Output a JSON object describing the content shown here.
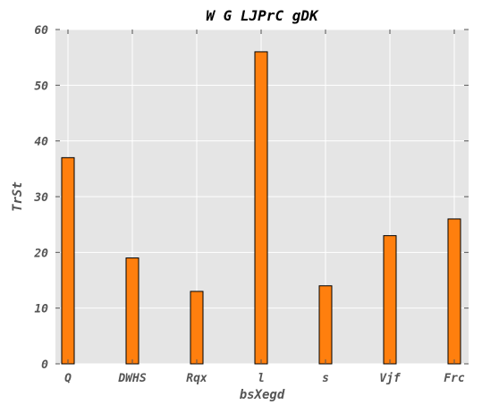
{
  "chart_data": {
    "type": "bar",
    "title": "W G LJPrC gDK",
    "xlabel": "bsXegd",
    "ylabel": "TrSt",
    "categories": [
      "Q",
      "DWHS",
      "Rqx",
      "l",
      "s",
      "Vjf",
      "Frc"
    ],
    "values": [
      37,
      19,
      13,
      56,
      14,
      23,
      26
    ],
    "ylim": [
      0,
      60
    ],
    "yticks": [
      0,
      10,
      20,
      30,
      40,
      50,
      60
    ],
    "grid": true,
    "bar_color": "#ff7f0e",
    "bar_edge_color": "#000000",
    "plot_background": "#e5e5e5"
  }
}
